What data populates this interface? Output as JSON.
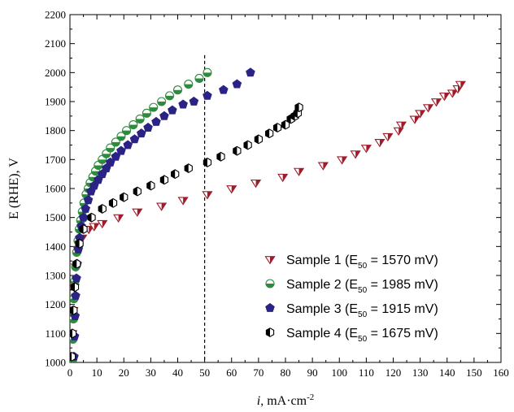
{
  "chart_data": {
    "type": "scatter",
    "xlabel_italic": "i",
    "xlabel_rest": ", mA·cm",
    "xlabel_sup": "-2",
    "ylabel": "E (RHE), V",
    "xlim": [
      0,
      160
    ],
    "ylim": [
      1000,
      2200
    ],
    "xticks": [
      0,
      10,
      20,
      30,
      40,
      50,
      60,
      70,
      80,
      90,
      100,
      110,
      120,
      130,
      140,
      150,
      160
    ],
    "yticks": [
      1000,
      1100,
      1200,
      1300,
      1400,
      1500,
      1600,
      1700,
      1800,
      1900,
      2000,
      2100,
      2200
    ],
    "grid": false,
    "legend_position": "bottom-right",
    "reference_line": {
      "x": 50,
      "style": "dashed",
      "color": "#000000"
    },
    "series": [
      {
        "name": "Sample 1 (E",
        "sub": "50",
        "suffix": " = 1570 mV)",
        "marker": "triangle-down",
        "color": "#a01c2a",
        "x": [
          0.5,
          0.8,
          1.2,
          1.6,
          2.2,
          3,
          4.5,
          7,
          9,
          12,
          18,
          25,
          34,
          42,
          51,
          60,
          69,
          79,
          85,
          94,
          101,
          106,
          110,
          115,
          118,
          122,
          123,
          128,
          130,
          133,
          136,
          139,
          142,
          144,
          145
        ],
        "y": [
          1020,
          1100,
          1180,
          1260,
          1330,
          1390,
          1430,
          1460,
          1470,
          1480,
          1500,
          1520,
          1540,
          1560,
          1580,
          1600,
          1620,
          1640,
          1660,
          1680,
          1700,
          1720,
          1740,
          1760,
          1780,
          1800,
          1820,
          1840,
          1860,
          1880,
          1900,
          1920,
          1930,
          1945,
          1960
        ]
      },
      {
        "name": "Sample 2 (E",
        "sub": "50",
        "suffix": " = 1985 mV)",
        "marker": "circle-half",
        "color": "#2e8b3e",
        "x": [
          1,
          1.1,
          1.3,
          1.5,
          1.8,
          2.1,
          2.5,
          3,
          3.5,
          4,
          4.6,
          5.2,
          6,
          6.8,
          7.5,
          8.5,
          9.5,
          10.5,
          12,
          13.5,
          15,
          17,
          19,
          21,
          23.5,
          26,
          28.5,
          31,
          34,
          37,
          40,
          44,
          48,
          51
        ],
        "y": [
          1010,
          1080,
          1150,
          1220,
          1280,
          1330,
          1380,
          1420,
          1460,
          1490,
          1520,
          1550,
          1580,
          1600,
          1620,
          1640,
          1660,
          1680,
          1700,
          1720,
          1740,
          1760,
          1780,
          1800,
          1820,
          1840,
          1860,
          1880,
          1900,
          1920,
          1940,
          1960,
          1980,
          2000
        ]
      },
      {
        "name": "Sample 3 (E",
        "sub": "50",
        "suffix": " = 1915 mV)",
        "marker": "pentagon",
        "color": "#2a2385",
        "x": [
          1.5,
          1.7,
          1.9,
          2.1,
          2.4,
          2.7,
          3.1,
          3.6,
          4.2,
          5,
          5.8,
          6.8,
          7.8,
          9,
          10.5,
          12,
          13.5,
          15,
          17,
          19,
          21.5,
          24,
          26.5,
          29,
          32,
          35,
          38,
          42,
          46,
          51,
          57,
          62,
          67
        ],
        "y": [
          1020,
          1090,
          1160,
          1230,
          1290,
          1340,
          1390,
          1430,
          1470,
          1500,
          1530,
          1560,
          1590,
          1610,
          1630,
          1650,
          1670,
          1690,
          1710,
          1730,
          1750,
          1770,
          1790,
          1810,
          1830,
          1850,
          1870,
          1890,
          1900,
          1920,
          1940,
          1960,
          2000
        ]
      },
      {
        "name": "Sample 4 (E",
        "sub": "50",
        "suffix": " = 1675 mV)",
        "marker": "hexagon-half",
        "color": "#000000",
        "x": [
          0.6,
          0.9,
          1.3,
          1.8,
          2.5,
          3.5,
          5,
          8,
          12,
          16,
          20,
          25,
          30,
          35,
          39,
          44,
          51,
          56,
          62,
          66,
          70,
          74,
          77,
          80,
          82,
          83.5,
          84.5,
          85
        ],
        "y": [
          1020,
          1100,
          1180,
          1260,
          1340,
          1410,
          1460,
          1500,
          1530,
          1550,
          1570,
          1590,
          1610,
          1630,
          1650,
          1670,
          1690,
          1710,
          1730,
          1750,
          1770,
          1790,
          1810,
          1820,
          1840,
          1850,
          1860,
          1880
        ]
      }
    ]
  }
}
